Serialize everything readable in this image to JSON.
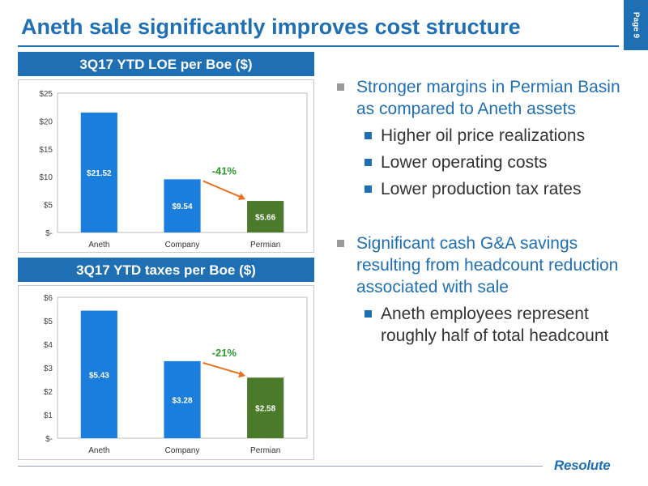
{
  "title": "Aneth sale significantly improves cost structure",
  "page_label": "Page 9",
  "logo_text": "Resolute",
  "colors": {
    "accent": "#1f6fb5",
    "blue_bar": "#1b7ddc",
    "green_bar": "#4b7a2b",
    "change_text": "#2e9a2e",
    "arrow": "#e9701f"
  },
  "chart_data": [
    {
      "type": "bar",
      "title": "3Q17 YTD LOE per Boe ($)",
      "categories": [
        "Aneth",
        "Company",
        "Permian"
      ],
      "values": [
        21.52,
        9.54,
        5.66
      ],
      "value_labels": [
        "$21.52",
        "$9.54",
        "$5.66"
      ],
      "bar_colors": [
        "#1b7ddc",
        "#1b7ddc",
        "#4b7a2b"
      ],
      "ylim": [
        0,
        25
      ],
      "yticks": [
        0,
        5,
        10,
        15,
        20,
        25
      ],
      "ytick_labels": [
        "$-",
        "$5",
        "$10",
        "$15",
        "$20",
        "$25"
      ],
      "annotation": {
        "text": "-41%",
        "from": "Company",
        "to": "Permian"
      }
    },
    {
      "type": "bar",
      "title": "3Q17 YTD taxes per Boe ($)",
      "categories": [
        "Aneth",
        "Company",
        "Permian"
      ],
      "values": [
        5.43,
        3.28,
        2.58
      ],
      "value_labels": [
        "$5.43",
        "$3.28",
        "$2.58"
      ],
      "bar_colors": [
        "#1b7ddc",
        "#1b7ddc",
        "#4b7a2b"
      ],
      "ylim": [
        0,
        6
      ],
      "yticks": [
        0,
        1,
        2,
        3,
        4,
        5,
        6
      ],
      "ytick_labels": [
        "$-",
        "$1",
        "$2",
        "$3",
        "$4",
        "$5",
        "$6"
      ],
      "annotation": {
        "text": "-21%",
        "from": "Company",
        "to": "Permian"
      }
    }
  ],
  "bullets": {
    "first": {
      "text": "Stronger margins in Permian Basin as compared to Aneth assets",
      "subs": [
        "Higher oil price realizations",
        "Lower operating costs",
        "Lower production tax rates"
      ]
    },
    "second": {
      "text": "Significant cash G&A savings resulting from headcount reduction associated with sale",
      "subs": [
        "Aneth employees represent roughly half of total headcount"
      ]
    }
  }
}
